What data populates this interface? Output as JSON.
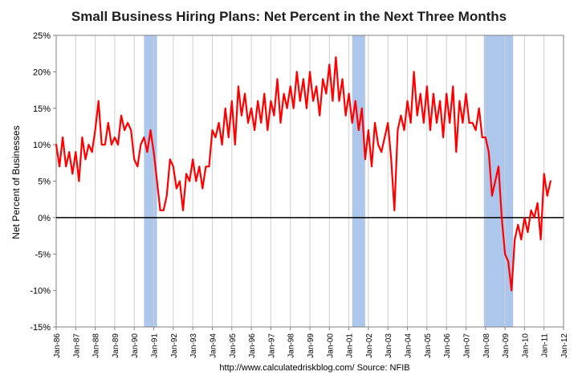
{
  "chart_data": {
    "type": "line",
    "title": "Small Business Hiring Plans: Net Percent in the Next Three Months",
    "ylabel": "Net Percent of Businesses",
    "xlabel": "",
    "footer": "http://www.calculatedriskblog.com/   Source: NFIB",
    "ylim": [
      -15,
      25
    ],
    "yticks": [
      -15,
      -10,
      -5,
      0,
      5,
      10,
      15,
      20,
      25
    ],
    "ytick_labels": [
      "-15%",
      "-10%",
      "-5%",
      "0%",
      "5%",
      "10%",
      "15%",
      "20%",
      "25%"
    ],
    "xlim": [
      "1986-01",
      "2012-01"
    ],
    "xtick_labels": [
      "Jan-86",
      "Jan-87",
      "Jan-88",
      "Jan-89",
      "Jan-90",
      "Jan-91",
      "Jan-92",
      "Jan-93",
      "Jan-94",
      "Jan-95",
      "Jan-96",
      "Jan-97",
      "Jan-98",
      "Jan-99",
      "Jan-00",
      "Jan-01",
      "Jan-02",
      "Jan-03",
      "Jan-04",
      "Jan-05",
      "Jan-06",
      "Jan-07",
      "Jan-08",
      "Jan-09",
      "Jan-10",
      "Jan-11",
      "Jan-12"
    ],
    "grid": "vertical",
    "recessions": [
      {
        "start": "1990-07",
        "end": "1991-03"
      },
      {
        "start": "2001-03",
        "end": "2001-11"
      },
      {
        "start": "2007-12",
        "end": "2009-06"
      }
    ],
    "colors": {
      "line": "#ff0000",
      "recession": "#adc6ec",
      "zero_line": "#000000"
    },
    "series": [
      {
        "x": [
          "1986-01",
          "1986-03",
          "1986-05",
          "1986-07",
          "1986-09",
          "1986-11",
          "1987-01",
          "1987-03",
          "1987-05",
          "1987-07",
          "1987-09",
          "1987-11",
          "1988-01",
          "1988-03",
          "1988-05",
          "1988-07",
          "1988-09",
          "1988-11",
          "1989-01",
          "1989-03",
          "1989-05",
          "1989-07",
          "1989-09",
          "1989-11",
          "1990-01",
          "1990-03",
          "1990-05",
          "1990-07",
          "1990-09",
          "1990-11",
          "1991-01",
          "1991-03",
          "1991-05",
          "1991-07",
          "1991-09",
          "1991-11",
          "1992-01",
          "1992-03",
          "1992-05",
          "1992-07",
          "1992-09",
          "1992-11",
          "1993-01",
          "1993-03",
          "1993-05",
          "1993-07",
          "1993-09",
          "1993-11",
          "1994-01",
          "1994-03",
          "1994-05",
          "1994-07",
          "1994-09",
          "1994-11",
          "1995-01",
          "1995-03",
          "1995-05",
          "1995-07",
          "1995-09",
          "1995-11",
          "1996-01",
          "1996-03",
          "1996-05",
          "1996-07",
          "1996-09",
          "1996-11",
          "1997-01",
          "1997-03",
          "1997-05",
          "1997-07",
          "1997-09",
          "1997-11",
          "1998-01",
          "1998-03",
          "1998-05",
          "1998-07",
          "1998-09",
          "1998-11",
          "1999-01",
          "1999-03",
          "1999-05",
          "1999-07",
          "1999-09",
          "1999-11",
          "2000-01",
          "2000-03",
          "2000-05",
          "2000-07",
          "2000-09",
          "2000-11",
          "2001-01",
          "2001-03",
          "2001-05",
          "2001-07",
          "2001-09",
          "2001-11",
          "2002-01",
          "2002-03",
          "2002-05",
          "2002-07",
          "2002-09",
          "2002-11",
          "2003-01",
          "2003-03",
          "2003-05",
          "2003-07",
          "2003-09",
          "2003-11",
          "2004-01",
          "2004-03",
          "2004-05",
          "2004-07",
          "2004-09",
          "2004-11",
          "2005-01",
          "2005-03",
          "2005-05",
          "2005-07",
          "2005-09",
          "2005-11",
          "2006-01",
          "2006-03",
          "2006-05",
          "2006-07",
          "2006-09",
          "2006-11",
          "2007-01",
          "2007-03",
          "2007-05",
          "2007-07",
          "2007-09",
          "2007-11",
          "2008-01",
          "2008-03",
          "2008-05",
          "2008-07",
          "2008-09",
          "2008-11",
          "2009-01",
          "2009-03",
          "2009-05",
          "2009-07",
          "2009-09",
          "2009-11",
          "2010-01",
          "2010-03",
          "2010-05",
          "2010-07",
          "2010-09",
          "2010-11",
          "2011-01",
          "2011-03",
          "2011-05"
        ],
        "values": [
          10,
          7,
          11,
          7,
          9,
          6,
          9,
          5,
          11,
          8,
          10,
          9,
          12,
          16,
          10,
          10,
          13,
          10,
          11,
          10,
          14,
          12,
          13,
          12,
          8,
          7,
          10,
          11,
          9,
          12,
          9,
          5,
          1,
          1,
          3,
          8,
          7,
          4,
          5,
          1,
          6,
          5,
          8,
          5,
          7,
          4,
          7,
          7,
          12,
          11,
          13,
          10,
          15,
          11,
          16,
          10,
          18,
          14,
          17,
          13,
          15,
          12,
          16,
          13,
          17,
          12,
          16,
          14,
          19,
          13,
          17,
          15,
          18,
          15,
          20,
          16,
          19,
          15,
          20,
          16,
          18,
          14,
          19,
          17,
          21,
          16,
          22,
          16,
          19,
          14,
          17,
          13,
          16,
          12,
          15,
          8,
          12,
          7,
          13,
          10,
          9,
          11,
          13,
          8,
          1,
          12,
          14,
          12,
          16,
          13,
          20,
          14,
          17,
          13,
          18,
          12,
          17,
          13,
          16,
          11,
          17,
          13,
          18,
          9,
          16,
          13,
          17,
          13,
          13,
          12,
          15,
          11,
          11,
          9,
          3,
          5,
          7,
          0,
          -5,
          -6,
          -10,
          -3,
          -1,
          -3,
          0,
          -2,
          1,
          0,
          2,
          -3,
          6,
          3,
          5
        ]
      }
    ]
  }
}
